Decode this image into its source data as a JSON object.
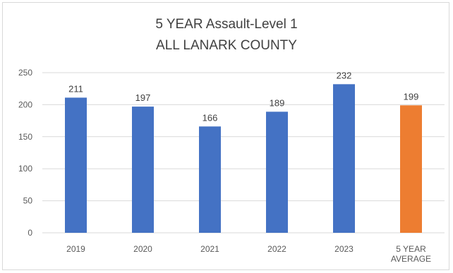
{
  "chart_data": {
    "type": "bar",
    "title": "5 YEAR Assault-Level 1",
    "subtitle": "ALL LANARK COUNTY",
    "categories": [
      [
        "2019"
      ],
      [
        "2020"
      ],
      [
        "2021"
      ],
      [
        "2022"
      ],
      [
        "2023"
      ],
      [
        "5 YEAR",
        "AVERAGE"
      ]
    ],
    "values": [
      211,
      197,
      166,
      189,
      232,
      199
    ],
    "data_labels": [
      "211",
      "197",
      "166",
      "189",
      "232",
      "199"
    ],
    "y_ticks": [
      "0",
      "50",
      "100",
      "150",
      "200",
      "250"
    ],
    "ylim": [
      0,
      250
    ],
    "grid": true,
    "legend": "none",
    "colors": [
      "#4472C4",
      "#4472C4",
      "#4472C4",
      "#4472C4",
      "#4472C4",
      "#ED7D31"
    ],
    "gridline_color": "#d9d9d9"
  }
}
